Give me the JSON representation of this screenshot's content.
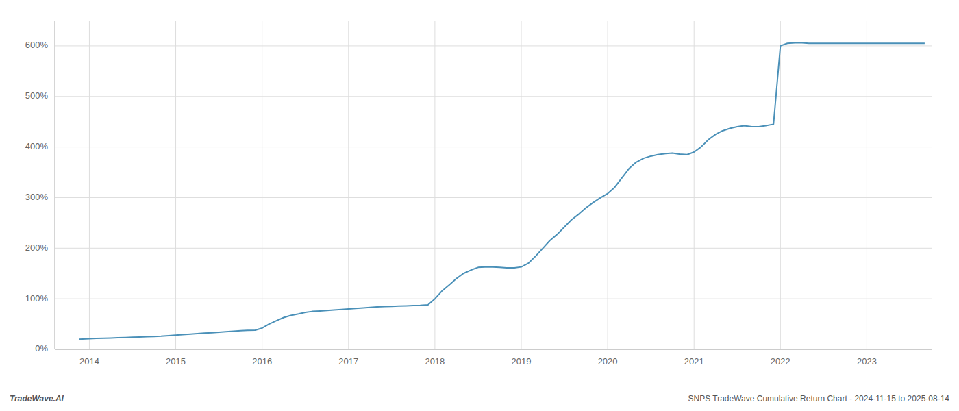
{
  "chart_data": {
    "type": "line",
    "title": "SNPS TradeWave Cumulative Return Chart - 2024-11-15 to 2025-08-14",
    "annotations": [
      "TradeWave.AI"
    ],
    "color": "#4a90b8",
    "grid": true,
    "xlim": [
      2013.6,
      2023.75
    ],
    "xticks": [
      2014,
      2015,
      2016,
      2017,
      2018,
      2019,
      2020,
      2021,
      2022,
      2023
    ],
    "ylim": [
      0,
      650
    ],
    "yticks": [
      {
        "value": 0,
        "label": "0%"
      },
      {
        "value": 100,
        "label": "100%"
      },
      {
        "value": 200,
        "label": "200%"
      },
      {
        "value": 300,
        "label": "300%"
      },
      {
        "value": 400,
        "label": "400%"
      },
      {
        "value": 500,
        "label": "500%"
      },
      {
        "value": 600,
        "label": "600%"
      }
    ],
    "x": [
      2013.88,
      2014.0,
      2014.08,
      2014.17,
      2014.25,
      2014.33,
      2014.42,
      2014.5,
      2014.58,
      2014.67,
      2014.75,
      2014.83,
      2014.92,
      2015.0,
      2015.08,
      2015.17,
      2015.25,
      2015.33,
      2015.42,
      2015.5,
      2015.58,
      2015.67,
      2015.75,
      2015.83,
      2015.92,
      2016.0,
      2016.08,
      2016.17,
      2016.25,
      2016.33,
      2016.42,
      2016.5,
      2016.58,
      2016.67,
      2016.75,
      2016.83,
      2016.92,
      2017.0,
      2017.08,
      2017.17,
      2017.25,
      2017.33,
      2017.42,
      2017.5,
      2017.58,
      2017.67,
      2017.75,
      2017.83,
      2017.92,
      2018.0,
      2018.08,
      2018.17,
      2018.25,
      2018.33,
      2018.42,
      2018.5,
      2018.58,
      2018.67,
      2018.75,
      2018.83,
      2018.92,
      2019.0,
      2019.08,
      2019.17,
      2019.25,
      2019.33,
      2019.42,
      2019.5,
      2019.58,
      2019.67,
      2019.75,
      2019.83,
      2019.92,
      2020.0,
      2020.08,
      2020.17,
      2020.25,
      2020.33,
      2020.42,
      2020.5,
      2020.58,
      2020.67,
      2020.75,
      2020.83,
      2020.92,
      2021.0,
      2021.08,
      2021.17,
      2021.25,
      2021.33,
      2021.42,
      2021.5,
      2021.58,
      2021.67,
      2021.75,
      2021.83,
      2021.92,
      2022.0,
      2022.08,
      2022.17,
      2022.25,
      2022.33,
      2022.42,
      2022.5,
      2022.58,
      2022.67,
      2022.75,
      2022.83,
      2022.92,
      2023.0,
      2023.08,
      2023.17,
      2023.25,
      2023.33,
      2023.42,
      2023.5,
      2023.58,
      2023.67
    ],
    "values": [
      20,
      21,
      21.5,
      22,
      22.5,
      23,
      23.5,
      24,
      24.5,
      25,
      25.5,
      26,
      27,
      28,
      29,
      30,
      31,
      32,
      33,
      34,
      35,
      36,
      37,
      37.5,
      38,
      42,
      50,
      57,
      63,
      67,
      70,
      73,
      75,
      76,
      77,
      78,
      79,
      80,
      81,
      82,
      83,
      84,
      84.5,
      85,
      85.5,
      86,
      86.5,
      87,
      88,
      100,
      115,
      128,
      140,
      150,
      157,
      162,
      163,
      163,
      162,
      161,
      161,
      163,
      170,
      185,
      200,
      215,
      228,
      242,
      256,
      268,
      280,
      290,
      300,
      308,
      320,
      340,
      358,
      370,
      378,
      382,
      385,
      387,
      388,
      386,
      385,
      390,
      400,
      415,
      425,
      432,
      437,
      440,
      442,
      440,
      440,
      442,
      445,
      600,
      605,
      606,
      606,
      605,
      605,
      605,
      605,
      605,
      605,
      605,
      605,
      605,
      605,
      605,
      605,
      605,
      605,
      605,
      605,
      605
    ]
  }
}
